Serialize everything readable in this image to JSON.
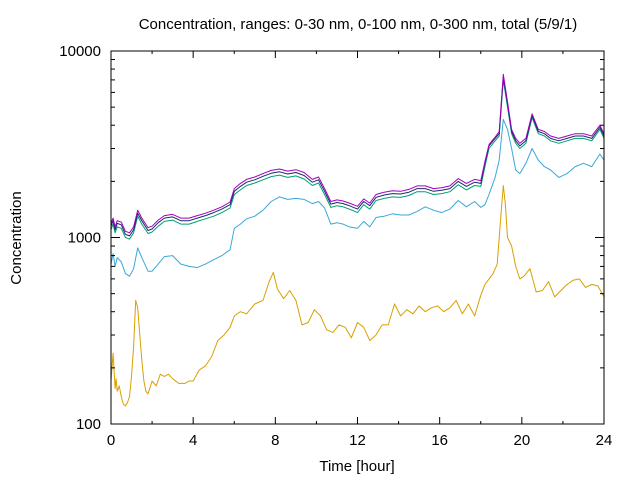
{
  "chart_data": {
    "type": "line",
    "title": "Concentration, ranges: 0-30 nm, 0-100 nm, 0-300 nm, total (5/9/1)",
    "xlabel": "Time [hour]",
    "ylabel": "Concentration",
    "xlim": [
      0,
      24
    ],
    "ylim": [
      100,
      10000
    ],
    "yscale": "log",
    "grid": false,
    "legend": "none",
    "x_ticks": [
      "0",
      "4",
      "8",
      "12",
      "16",
      "20",
      "24"
    ],
    "y_ticks": [
      "100",
      "1000",
      "10000"
    ],
    "series": [
      {
        "color": "#d8a000",
        "x": [
          0,
          0.1,
          0.2,
          0.25,
          0.3,
          0.4,
          0.5,
          0.6,
          0.7,
          0.8,
          0.9,
          1.0,
          1.1,
          1.2,
          1.3,
          1.4,
          1.5,
          1.6,
          1.7,
          1.8,
          2.0,
          2.2,
          2.4,
          2.6,
          2.8,
          3.0,
          3.3,
          3.6,
          3.8,
          4.0,
          4.3,
          4.6,
          4.9,
          5.2,
          5.5,
          5.8,
          6.0,
          6.3,
          6.6,
          7.0,
          7.4,
          7.7,
          7.9,
          8.1,
          8.4,
          8.7,
          9.0,
          9.3,
          9.6,
          9.9,
          10.2,
          10.5,
          10.8,
          11.1,
          11.4,
          11.7,
          12.0,
          12.3,
          12.6,
          12.9,
          13.2,
          13.5,
          13.8,
          14.1,
          14.4,
          14.7,
          15.0,
          15.3,
          15.6,
          15.9,
          16.2,
          16.5,
          16.8,
          17.1,
          17.4,
          17.7,
          18.0,
          18.2,
          18.4,
          18.6,
          18.8,
          19.0,
          19.1,
          19.2,
          19.3,
          19.5,
          19.7,
          19.9,
          20.1,
          20.4,
          20.7,
          21.0,
          21.3,
          21.6,
          21.9,
          22.2,
          22.5,
          22.8,
          23.1,
          23.4,
          23.7,
          24.0
        ],
        "values": [
          170,
          240,
          155,
          175,
          150,
          160,
          140,
          128,
          125,
          130,
          140,
          180,
          260,
          460,
          420,
          300,
          220,
          170,
          150,
          145,
          170,
          160,
          185,
          180,
          185,
          175,
          165,
          165,
          170,
          170,
          195,
          205,
          230,
          280,
          300,
          330,
          380,
          400,
          390,
          440,
          460,
          580,
          650,
          530,
          470,
          520,
          460,
          340,
          350,
          410,
          380,
          320,
          310,
          340,
          330,
          290,
          350,
          330,
          280,
          300,
          340,
          340,
          440,
          380,
          410,
          390,
          430,
          400,
          420,
          430,
          400,
          420,
          460,
          390,
          440,
          380,
          490,
          560,
          600,
          640,
          720,
          1400,
          1900,
          1500,
          1000,
          900,
          700,
          600,
          620,
          680,
          510,
          520,
          580,
          480,
          520,
          560,
          590,
          600,
          540,
          560,
          550,
          480
        ]
      },
      {
        "color": "#3aa7d8",
        "x": [
          0,
          0.1,
          0.2,
          0.3,
          0.5,
          0.7,
          0.9,
          1.1,
          1.3,
          1.5,
          1.8,
          2.0,
          2.3,
          2.6,
          3.0,
          3.4,
          3.8,
          4.2,
          4.6,
          5.0,
          5.4,
          5.8,
          6.0,
          6.3,
          6.6,
          7.0,
          7.4,
          7.8,
          8.2,
          8.6,
          9.0,
          9.4,
          9.8,
          10.1,
          10.4,
          10.7,
          11.0,
          11.3,
          11.6,
          12.0,
          12.3,
          12.6,
          12.9,
          13.3,
          13.7,
          14.1,
          14.5,
          14.9,
          15.3,
          15.7,
          16.1,
          16.5,
          16.9,
          17.3,
          17.7,
          18.0,
          18.2,
          18.4,
          18.7,
          18.9,
          19.1,
          19.3,
          19.5,
          19.7,
          19.9,
          20.2,
          20.5,
          20.8,
          21.1,
          21.4,
          21.8,
          22.2,
          22.6,
          23.0,
          23.4,
          23.8,
          24.0
        ],
        "values": [
          720,
          820,
          700,
          780,
          740,
          640,
          620,
          680,
          880,
          780,
          660,
          660,
          720,
          790,
          800,
          720,
          700,
          690,
          720,
          760,
          800,
          860,
          1120,
          1180,
          1260,
          1300,
          1400,
          1560,
          1650,
          1600,
          1620,
          1600,
          1520,
          1560,
          1440,
          1180,
          1200,
          1180,
          1140,
          1120,
          1220,
          1140,
          1280,
          1300,
          1340,
          1320,
          1320,
          1380,
          1460,
          1400,
          1360,
          1420,
          1580,
          1460,
          1560,
          1450,
          1500,
          1700,
          2100,
          2600,
          4300,
          3800,
          3000,
          2300,
          2200,
          2500,
          3000,
          2600,
          2400,
          2300,
          2100,
          2200,
          2400,
          2500,
          2400,
          2800,
          2600
        ]
      },
      {
        "color": "#009e73",
        "x": [
          0,
          0.1,
          0.2,
          0.3,
          0.5,
          0.7,
          0.9,
          1.1,
          1.3,
          1.5,
          1.8,
          2.0,
          2.3,
          2.6,
          3.0,
          3.4,
          3.8,
          4.2,
          4.6,
          5.0,
          5.4,
          5.8,
          6.0,
          6.3,
          6.6,
          7.0,
          7.4,
          7.8,
          8.2,
          8.6,
          9.0,
          9.4,
          9.8,
          10.1,
          10.4,
          10.7,
          11.0,
          11.3,
          11.6,
          12.0,
          12.3,
          12.6,
          12.9,
          13.3,
          13.7,
          14.1,
          14.5,
          14.9,
          15.3,
          15.7,
          16.1,
          16.5,
          16.9,
          17.3,
          17.7,
          18.0,
          18.2,
          18.4,
          18.7,
          18.9,
          19.1,
          19.3,
          19.5,
          19.7,
          19.9,
          20.2,
          20.5,
          20.8,
          21.1,
          21.4,
          21.8,
          22.2,
          22.6,
          23.0,
          23.4,
          23.8,
          24.0
        ],
        "values": [
          1100,
          1180,
          1060,
          1140,
          1120,
          1000,
          980,
          1060,
          1300,
          1180,
          1050,
          1070,
          1150,
          1220,
          1240,
          1180,
          1180,
          1220,
          1260,
          1300,
          1360,
          1440,
          1700,
          1800,
          1900,
          1960,
          2040,
          2120,
          2160,
          2100,
          2140,
          2060,
          1900,
          1960,
          1700,
          1450,
          1480,
          1460,
          1420,
          1360,
          1500,
          1420,
          1580,
          1620,
          1650,
          1640,
          1680,
          1760,
          1760,
          1700,
          1720,
          1760,
          1920,
          1800,
          1900,
          1880,
          2400,
          3000,
          3300,
          3500,
          7000,
          5000,
          3600,
          3200,
          3000,
          3200,
          4400,
          3600,
          3500,
          3300,
          3200,
          3300,
          3400,
          3400,
          3300,
          3800,
          3400
        ]
      },
      {
        "color": "#1b2a6b",
        "x": [
          0,
          0.1,
          0.2,
          0.3,
          0.5,
          0.7,
          0.9,
          1.1,
          1.3,
          1.5,
          1.8,
          2.0,
          2.3,
          2.6,
          3.0,
          3.4,
          3.8,
          4.2,
          4.6,
          5.0,
          5.4,
          5.8,
          6.0,
          6.3,
          6.6,
          7.0,
          7.4,
          7.8,
          8.2,
          8.6,
          9.0,
          9.4,
          9.8,
          10.1,
          10.4,
          10.7,
          11.0,
          11.3,
          11.6,
          12.0,
          12.3,
          12.6,
          12.9,
          13.3,
          13.7,
          14.1,
          14.5,
          14.9,
          15.3,
          15.7,
          16.1,
          16.5,
          16.9,
          17.3,
          17.7,
          18.0,
          18.2,
          18.4,
          18.7,
          18.9,
          19.1,
          19.3,
          19.5,
          19.7,
          19.9,
          20.2,
          20.5,
          20.8,
          21.1,
          21.4,
          21.8,
          22.2,
          22.6,
          23.0,
          23.4,
          23.8,
          24.0
        ],
        "values": [
          1150,
          1230,
          1100,
          1190,
          1170,
          1040,
          1020,
          1100,
          1350,
          1230,
          1090,
          1110,
          1200,
          1270,
          1290,
          1230,
          1230,
          1270,
          1310,
          1360,
          1420,
          1500,
          1770,
          1880,
          1980,
          2040,
          2130,
          2210,
          2250,
          2190,
          2230,
          2150,
          1980,
          2040,
          1770,
          1510,
          1540,
          1520,
          1480,
          1420,
          1560,
          1480,
          1640,
          1690,
          1720,
          1710,
          1750,
          1830,
          1830,
          1770,
          1790,
          1830,
          2000,
          1880,
          1980,
          1950,
          2500,
          3100,
          3400,
          3600,
          7300,
          5200,
          3700,
          3300,
          3100,
          3300,
          4500,
          3700,
          3600,
          3400,
          3300,
          3400,
          3500,
          3500,
          3400,
          3900,
          3500
        ]
      },
      {
        "color": "#a000c0",
        "x": [
          0,
          0.1,
          0.2,
          0.3,
          0.5,
          0.7,
          0.9,
          1.1,
          1.3,
          1.5,
          1.8,
          2.0,
          2.3,
          2.6,
          3.0,
          3.4,
          3.8,
          4.2,
          4.6,
          5.0,
          5.4,
          5.8,
          6.0,
          6.3,
          6.6,
          7.0,
          7.4,
          7.8,
          8.2,
          8.6,
          9.0,
          9.4,
          9.8,
          10.1,
          10.4,
          10.7,
          11.0,
          11.3,
          11.6,
          12.0,
          12.3,
          12.6,
          12.9,
          13.3,
          13.7,
          14.1,
          14.5,
          14.9,
          15.3,
          15.7,
          16.1,
          16.5,
          16.9,
          17.3,
          17.7,
          18.0,
          18.2,
          18.4,
          18.7,
          18.9,
          19.1,
          19.3,
          19.5,
          19.7,
          19.9,
          20.2,
          20.5,
          20.8,
          21.1,
          21.4,
          21.8,
          22.2,
          22.6,
          23.0,
          23.4,
          23.8,
          24.0
        ],
        "values": [
          1190,
          1270,
          1140,
          1230,
          1210,
          1080,
          1060,
          1140,
          1400,
          1270,
          1130,
          1150,
          1240,
          1310,
          1330,
          1270,
          1270,
          1310,
          1350,
          1400,
          1460,
          1550,
          1830,
          1950,
          2050,
          2110,
          2200,
          2290,
          2330,
          2270,
          2310,
          2230,
          2050,
          2110,
          1830,
          1560,
          1590,
          1570,
          1530,
          1470,
          1610,
          1530,
          1700,
          1750,
          1780,
          1770,
          1810,
          1890,
          1890,
          1830,
          1850,
          1890,
          2070,
          1950,
          2050,
          2020,
          2550,
          3150,
          3450,
          3700,
          7500,
          5350,
          3800,
          3400,
          3200,
          3400,
          4600,
          3800,
          3700,
          3500,
          3400,
          3500,
          3600,
          3600,
          3500,
          4000,
          3600
        ]
      }
    ]
  }
}
